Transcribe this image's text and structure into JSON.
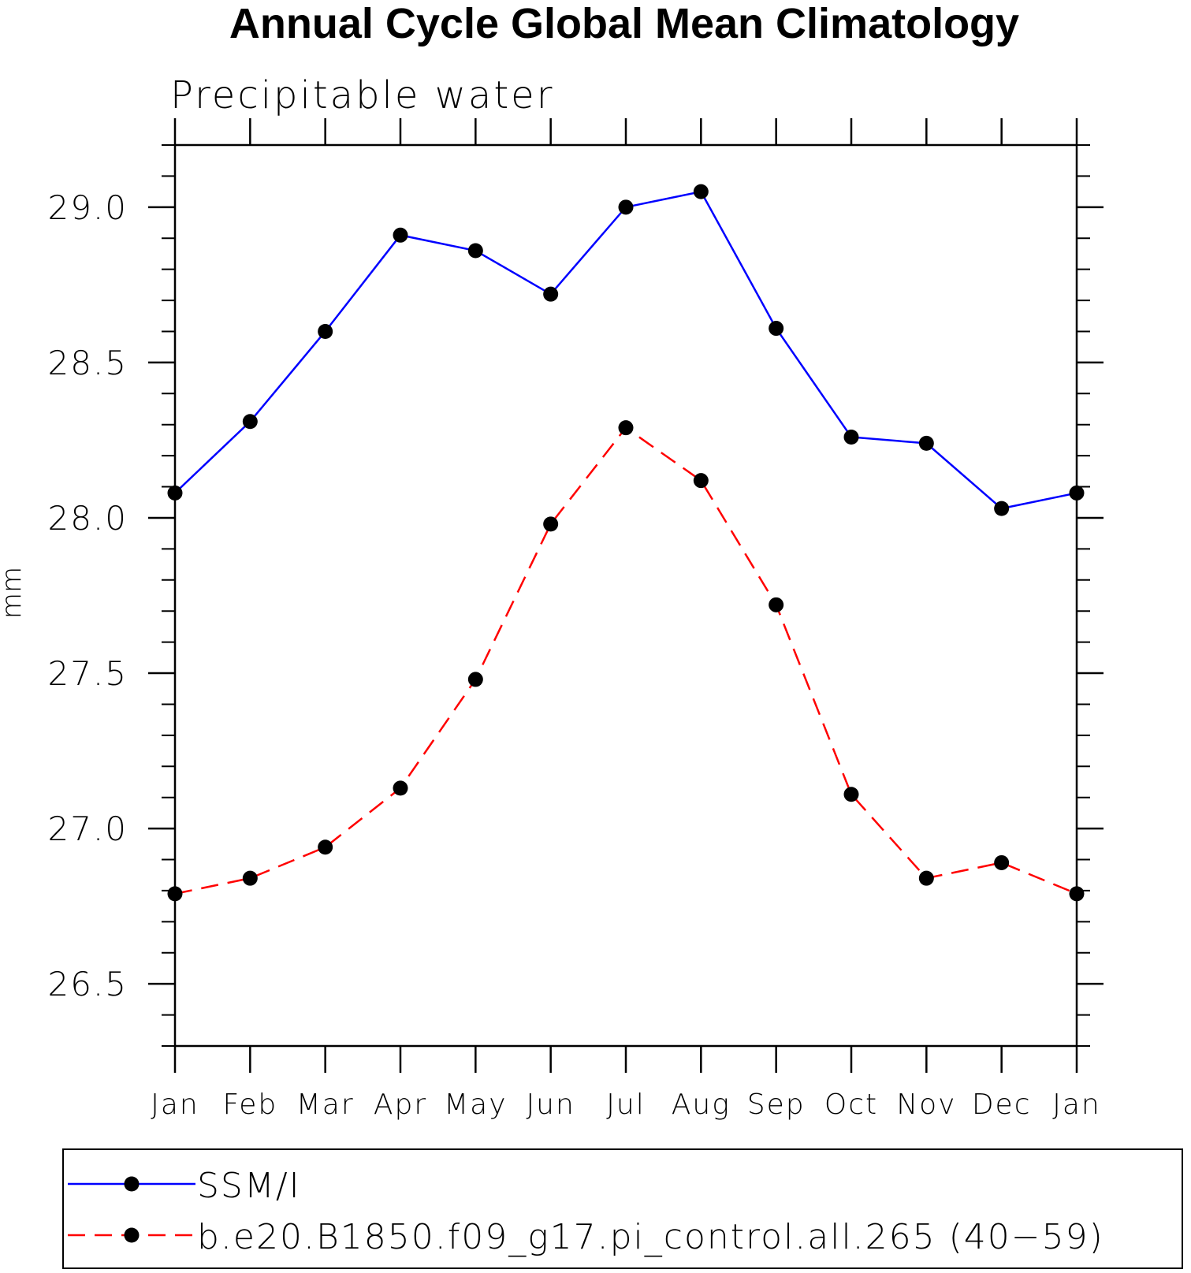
{
  "chart_data": {
    "type": "line",
    "title": "Annual Cycle Global Mean Climatology",
    "subtitle": "Precipitable water",
    "xlabel": "",
    "ylabel": "mm",
    "categories": [
      "Jan",
      "Feb",
      "Mar",
      "Apr",
      "May",
      "Jun",
      "Jul",
      "Aug",
      "Sep",
      "Oct",
      "Nov",
      "Dec",
      "Jan"
    ],
    "ylim": [
      26.3,
      29.2
    ],
    "yticks": [
      "26.5",
      "27.0",
      "27.5",
      "28.0",
      "28.5",
      "29.0"
    ],
    "ytick_values": [
      26.5,
      27.0,
      27.5,
      28.0,
      28.5,
      29.0
    ],
    "yminor_step": 0.1,
    "grid": false,
    "legend_position": "bottom",
    "series": [
      {
        "name": "SSM/I",
        "color": "#0000ff",
        "dash": "solid",
        "marker": "filled-circle",
        "values": [
          28.08,
          28.31,
          28.6,
          28.91,
          28.86,
          28.72,
          29.0,
          29.05,
          28.61,
          28.26,
          28.24,
          28.03,
          28.08
        ]
      },
      {
        "name": "b.e20.B1850.f09_g17.pi_control.all.265 (40−59)",
        "color": "#ff0000",
        "dash": "dashed",
        "marker": "filled-circle",
        "values": [
          26.79,
          26.84,
          26.94,
          27.13,
          27.48,
          27.98,
          28.29,
          28.12,
          27.72,
          27.11,
          26.84,
          26.89,
          26.79
        ]
      }
    ]
  }
}
